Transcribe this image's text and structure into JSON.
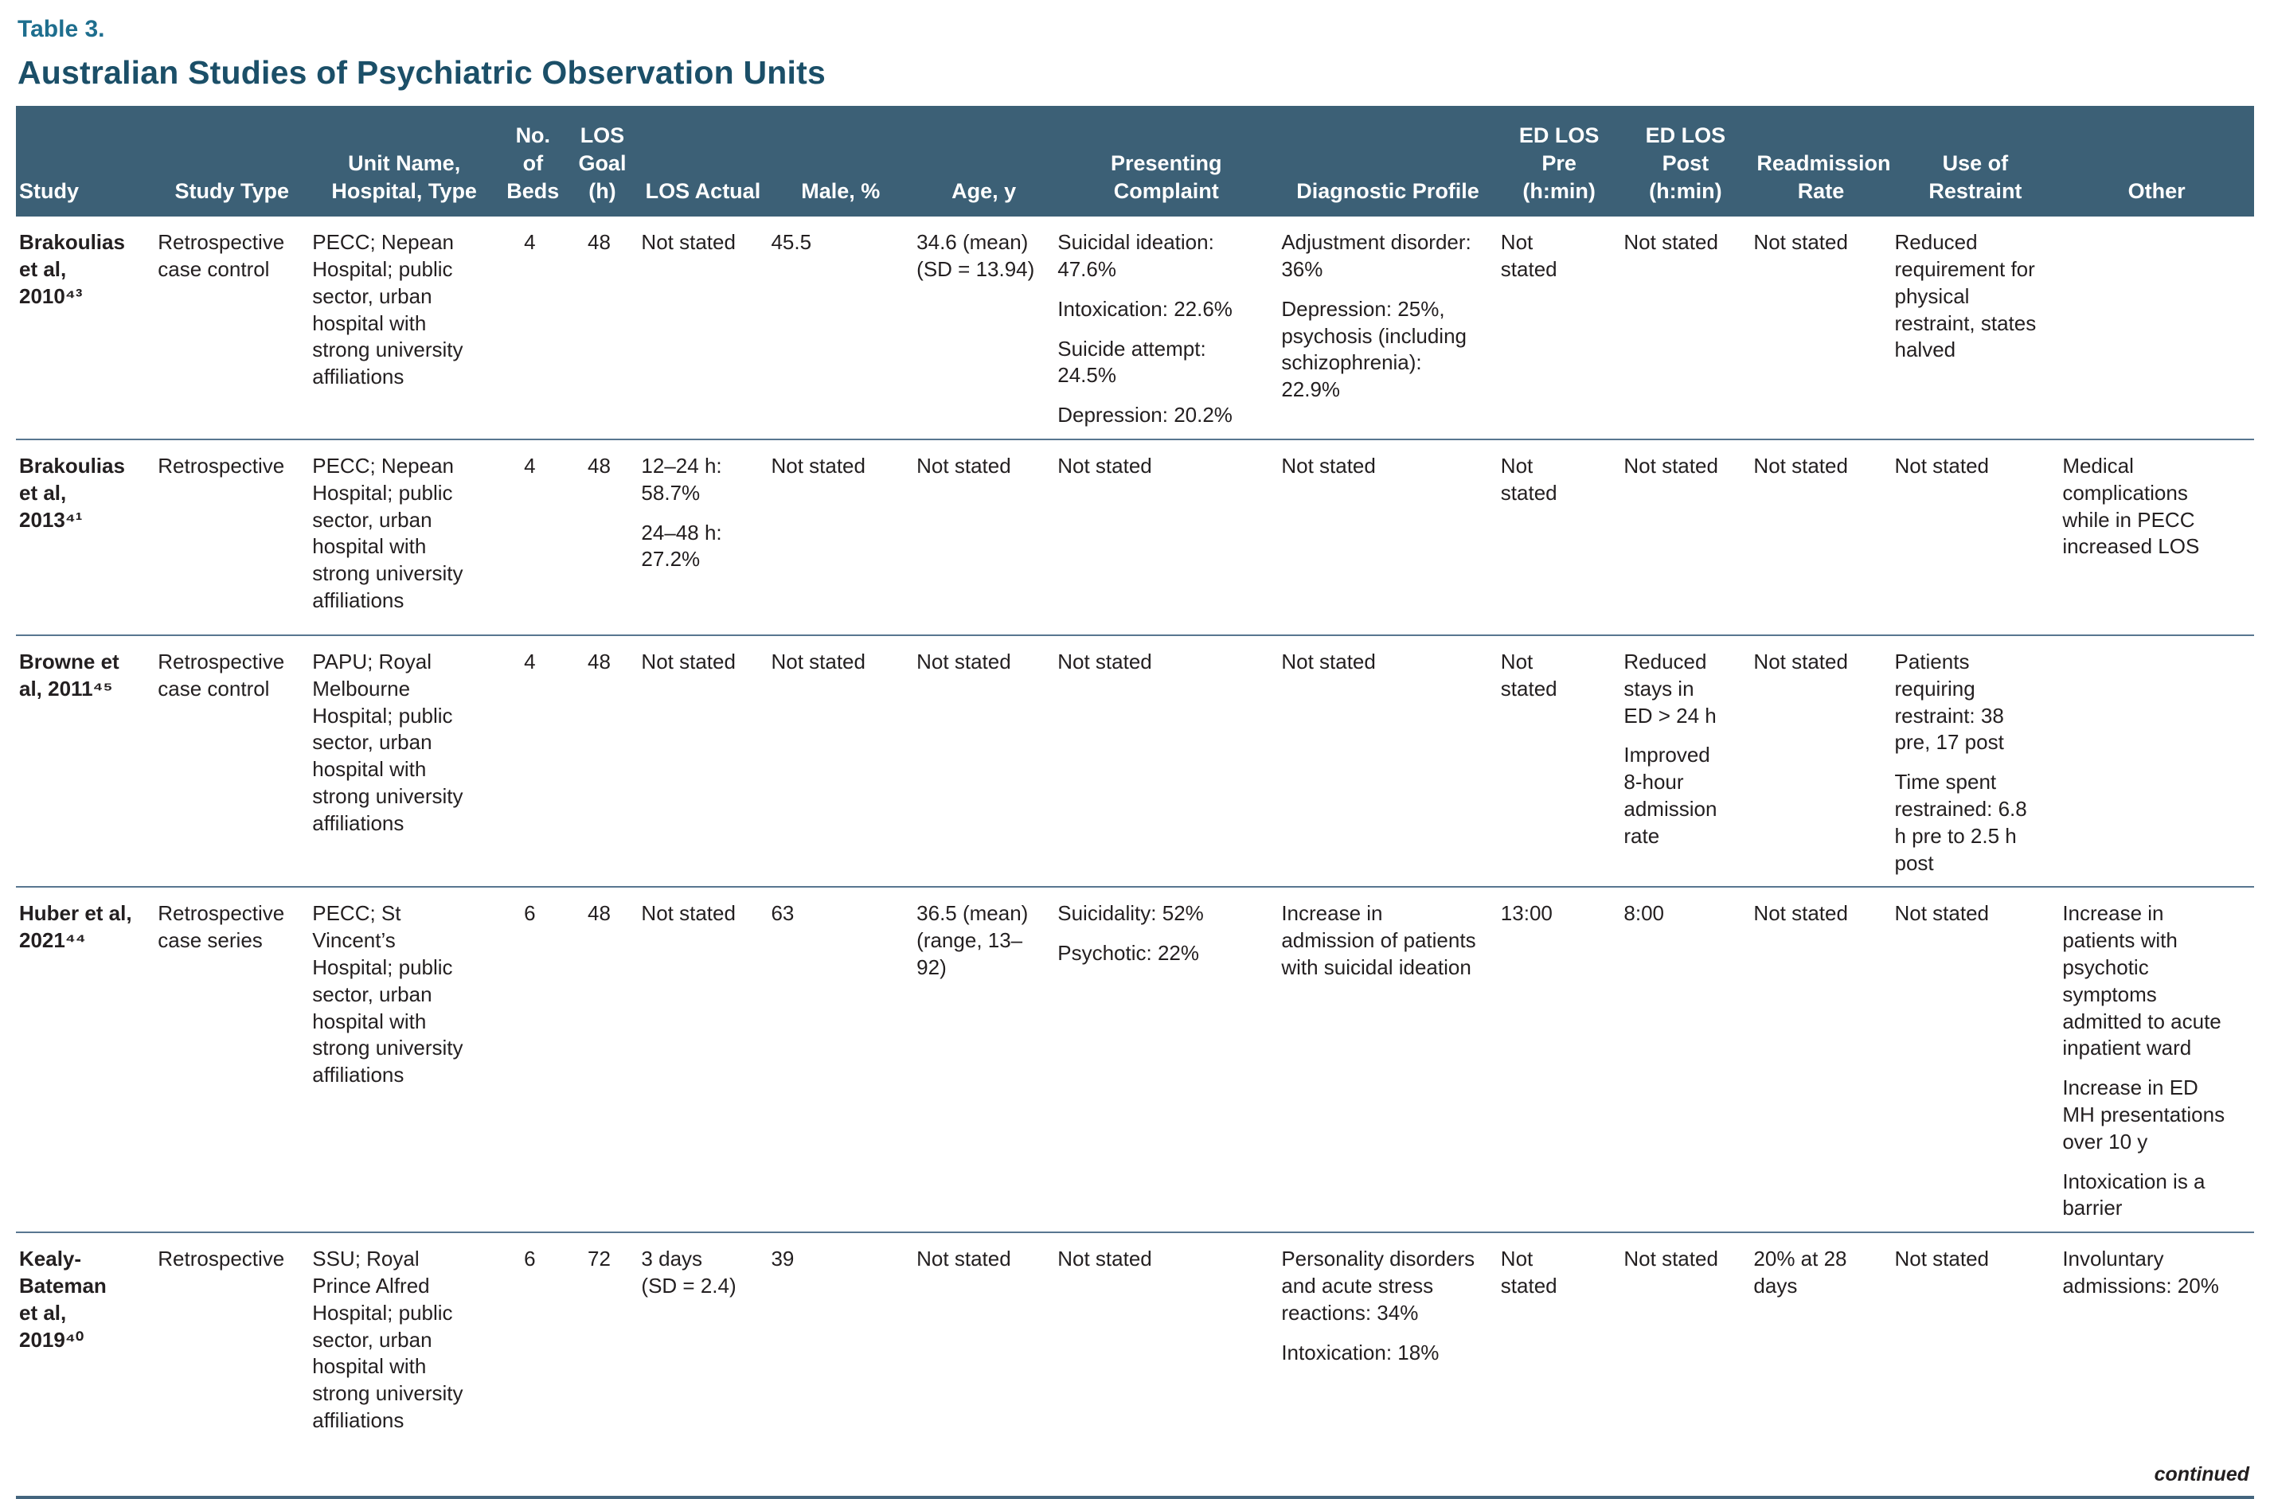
{
  "page": {
    "table_label": "Table 3.",
    "title": "Australian Studies of Psychiatric Observation Units",
    "continued_note": "continued"
  },
  "colors": {
    "header_background": "#3c6076",
    "table_label_accent": "#1e6e8e",
    "title_color": "#1b4f68",
    "row_divider": "#587690",
    "body_text": "#231f20"
  },
  "table": {
    "columns": [
      {
        "label": "Study"
      },
      {
        "label": "Study Type"
      },
      {
        "label": [
          "Unit Name,",
          "Hospital, Type"
        ]
      },
      {
        "label": [
          "No. of",
          "Beds"
        ]
      },
      {
        "label": [
          "LOS",
          "Goal",
          "(h)"
        ]
      },
      {
        "label": "LOS Actual"
      },
      {
        "label": "Male, %"
      },
      {
        "label": "Age, y"
      },
      {
        "label": [
          "Presenting",
          "Complaint"
        ]
      },
      {
        "label": "Diagnostic Profile"
      },
      {
        "label": [
          "ED LOS",
          "Pre",
          "(h:min)"
        ]
      },
      {
        "label": [
          "ED LOS",
          "Post",
          "(h:min)"
        ]
      },
      {
        "label": [
          "Readmission",
          "Rate"
        ]
      },
      {
        "label": "Use of Restraint"
      },
      {
        "label": "Other"
      }
    ],
    "rows": [
      {
        "study": [
          "Brakoulias",
          "et al,",
          "2010⁴³"
        ],
        "study_type": "Retrospective case control",
        "unit": "PECC; Nepean Hospital; public sector, urban hospital with strong university affiliations",
        "beds": "4",
        "los_goal": "48",
        "los_actual": "Not stated",
        "male_pct": "45.5",
        "age": "34.6 (mean) (SD = 13.94)",
        "presenting": [
          "Suicidal ideation: 47.6%",
          "Intoxication: 22.6%",
          "Suicide attempt: 24.5%",
          "Depression: 20.2%"
        ],
        "diagnostic": [
          "Adjustment disorder: 36%",
          "Depression: 25%, psychosis (including schizophrenia): 22.9%"
        ],
        "ed_los_pre": [
          "Not",
          "stated"
        ],
        "ed_los_post": "Not stated",
        "readmission": "Not stated",
        "restraint": "Reduced requirement for physical restraint, states halved",
        "other": ""
      },
      {
        "study": [
          "Brakoulias",
          "et al,",
          "2013⁴¹"
        ],
        "study_type": "Retrospective",
        "unit": "PECC; Nepean Hospital; public sector, urban hospital with strong university affiliations",
        "beds": "4",
        "los_goal": "48",
        "los_actual": [
          "12–24 h: 58.7%",
          "24–48 h: 27.2%"
        ],
        "male_pct": "Not stated",
        "age": "Not stated",
        "presenting": "Not stated",
        "diagnostic": "Not stated",
        "ed_los_pre": [
          "Not",
          "stated"
        ],
        "ed_los_post": "Not stated",
        "readmission": "Not stated",
        "restraint": "Not stated",
        "other": "Medical complications while in PECC increased LOS"
      },
      {
        "study": [
          "Browne et",
          "al, 2011⁴⁵"
        ],
        "study_type": "Retrospective case control",
        "unit": "PAPU; Royal Melbourne Hospital; public sector, urban hospital with strong university affiliations",
        "beds": "4",
        "los_goal": "48",
        "los_actual": "Not stated",
        "male_pct": "Not stated",
        "age": "Not stated",
        "presenting": "Not stated",
        "diagnostic": "Not stated",
        "ed_los_pre": [
          "Not",
          "stated"
        ],
        "ed_los_post": [
          "Reduced stays in ED > 24 h",
          "Improved 8-hour admission rate"
        ],
        "readmission": "Not stated",
        "restraint": [
          "Patients requiring restraint: 38 pre, 17 post",
          "Time spent restrained: 6.8 h pre to 2.5 h post"
        ],
        "other": ""
      },
      {
        "study": [
          "Huber et al,",
          "2021⁴⁴"
        ],
        "study_type": "Retrospective case series",
        "unit": "PECC; St Vincent’s Hospital; public sector, urban hospital with strong university affiliations",
        "beds": "6",
        "los_goal": "48",
        "los_actual": "Not stated",
        "male_pct": "63",
        "age": "36.5 (mean) (range, 13–92)",
        "presenting": [
          "Suicidality: 52%",
          "Psychotic: 22%"
        ],
        "diagnostic": "Increase in admission of patients with suicidal ideation",
        "ed_los_pre": "13:00",
        "ed_los_post": "8:00",
        "readmission": "Not stated",
        "restraint": "Not stated",
        "other": [
          "Increase in patients with psychotic symptoms admitted to acute inpatient ward",
          "Increase in ED MH presentations over 10 y",
          "Intoxication is a barrier"
        ]
      },
      {
        "study": [
          "Kealy-",
          "Bateman",
          "et al,",
          "2019⁴⁰"
        ],
        "study_type": "Retrospective",
        "unit": "SSU; Royal Prince Alfred Hospital; public sector, urban hospital with strong university affiliations",
        "beds": "6",
        "los_goal": "72",
        "los_actual": "3 days (SD = 2.4)",
        "male_pct": "39",
        "age": "Not stated",
        "presenting": "Not stated",
        "diagnostic": [
          "Personality disorders and acute stress reactions: 34%",
          "Intoxication: 18%"
        ],
        "ed_los_pre": [
          "Not",
          "stated"
        ],
        "ed_los_post": "Not stated",
        "readmission": "20% at 28 days",
        "restraint": "Not stated",
        "other": "Involuntary admissions: 20%"
      }
    ]
  }
}
